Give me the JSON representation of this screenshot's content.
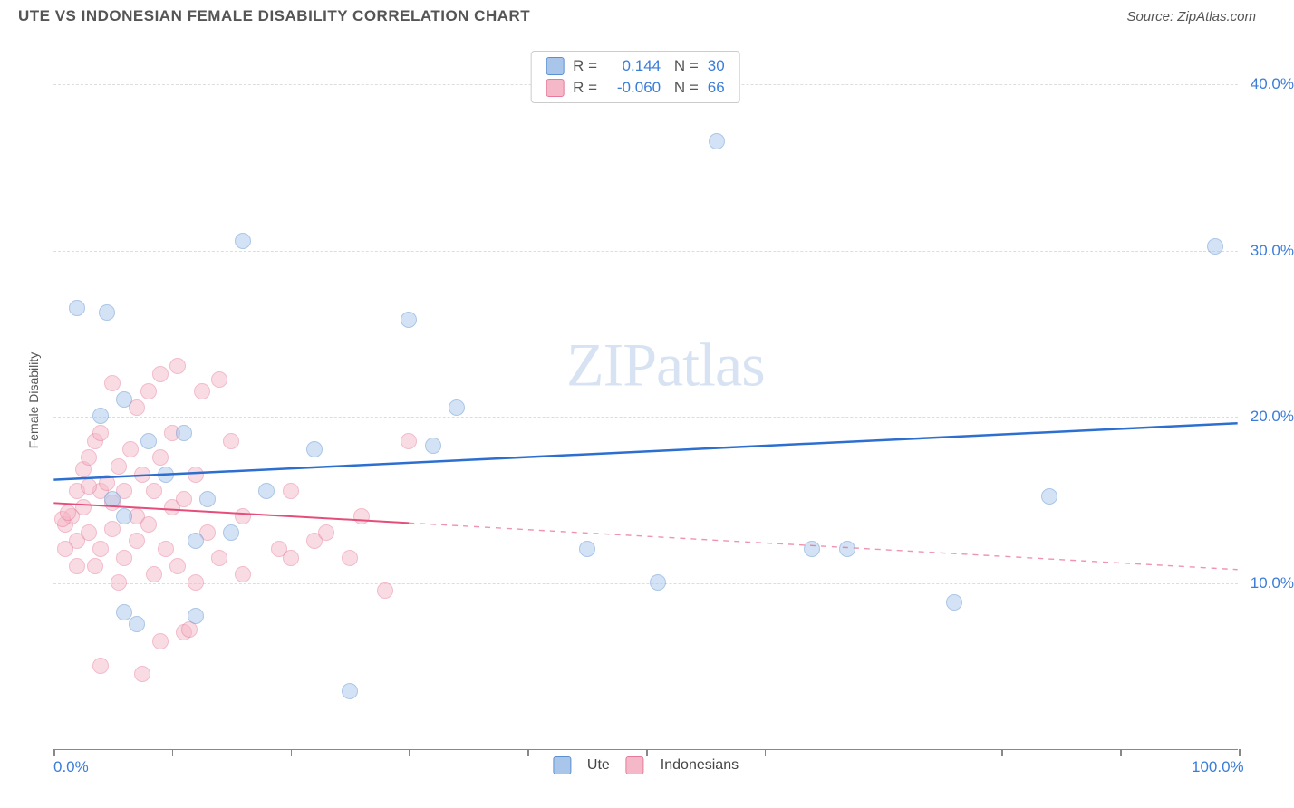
{
  "title": "UTE VS INDONESIAN FEMALE DISABILITY CORRELATION CHART",
  "source": "Source: ZipAtlas.com",
  "watermark_zip": "ZIP",
  "watermark_atlas": "atlas",
  "y_axis_label": "Female Disability",
  "chart": {
    "type": "scatter",
    "background_color": "#ffffff",
    "grid_color": "#dddddd",
    "axis_color": "#888888",
    "xlim": [
      0,
      100
    ],
    "ylim": [
      0,
      42
    ],
    "y_ticks": [
      10,
      20,
      30,
      40
    ],
    "y_tick_labels": [
      "10.0%",
      "20.0%",
      "30.0%",
      "40.0%"
    ],
    "x_ticks": [
      0,
      10,
      20,
      30,
      40,
      50,
      60,
      70,
      80,
      90,
      100
    ],
    "x_tick_labels_shown": {
      "0": "0.0%",
      "100": "100.0%"
    },
    "marker_radius": 9,
    "marker_opacity": 0.5,
    "marker_border_width": 1.5,
    "series": {
      "ute": {
        "label": "Ute",
        "fill": "#a9c6ea",
        "stroke": "#5a8fd0",
        "r_value": "0.144",
        "n_value": "30",
        "trend": {
          "x1": 0,
          "y1": 16.2,
          "x2": 100,
          "y2": 19.6,
          "solid_until_x": 100,
          "color": "#2d6fd0",
          "width": 2.5
        },
        "points": [
          [
            2,
            26.5
          ],
          [
            4.5,
            26.2
          ],
          [
            6,
            21.0
          ],
          [
            6,
            14.0
          ],
          [
            6,
            8.2
          ],
          [
            11,
            19.0
          ],
          [
            12,
            12.5
          ],
          [
            12,
            8.0
          ],
          [
            15,
            13.0
          ],
          [
            16,
            30.5
          ],
          [
            22,
            18.0
          ],
          [
            25,
            3.5
          ],
          [
            30,
            25.8
          ],
          [
            32,
            18.2
          ],
          [
            34,
            20.5
          ],
          [
            45,
            12.0
          ],
          [
            51,
            10.0
          ],
          [
            56,
            36.5
          ],
          [
            64,
            12.0
          ],
          [
            67,
            12.0
          ],
          [
            76,
            8.8
          ],
          [
            84,
            15.2
          ],
          [
            98,
            30.2
          ],
          [
            8,
            18.5
          ],
          [
            4,
            20.0
          ],
          [
            18,
            15.5
          ],
          [
            9.5,
            16.5
          ],
          [
            13,
            15.0
          ],
          [
            7,
            7.5
          ],
          [
            5,
            15.0
          ]
        ]
      },
      "indonesians": {
        "label": "Indonesians",
        "fill": "#f5b8c8",
        "stroke": "#e67a9a",
        "r_value": "-0.060",
        "n_value": "66",
        "trend": {
          "x1": 0,
          "y1": 14.8,
          "x2": 100,
          "y2": 10.8,
          "solid_until_x": 30,
          "color": "#e54d7a",
          "width": 2
        },
        "points": [
          [
            1,
            13.5
          ],
          [
            1.5,
            14.0
          ],
          [
            2,
            12.5
          ],
          [
            2,
            15.5
          ],
          [
            2.5,
            14.5
          ],
          [
            2.5,
            16.8
          ],
          [
            3,
            13.0
          ],
          [
            3,
            17.5
          ],
          [
            3.5,
            18.5
          ],
          [
            3.5,
            11.0
          ],
          [
            4,
            15.5
          ],
          [
            4,
            19.0
          ],
          [
            4,
            12.0
          ],
          [
            4.5,
            16.0
          ],
          [
            5,
            22.0
          ],
          [
            5,
            14.8
          ],
          [
            5,
            13.2
          ],
          [
            5.5,
            17.0
          ],
          [
            5.5,
            10.0
          ],
          [
            6,
            15.5
          ],
          [
            6,
            11.5
          ],
          [
            6.5,
            18.0
          ],
          [
            7,
            20.5
          ],
          [
            7,
            14.0
          ],
          [
            7,
            12.5
          ],
          [
            7.5,
            16.5
          ],
          [
            8,
            21.5
          ],
          [
            8,
            13.5
          ],
          [
            8.5,
            10.5
          ],
          [
            8.5,
            15.5
          ],
          [
            9,
            22.5
          ],
          [
            9,
            17.5
          ],
          [
            9,
            6.5
          ],
          [
            9.5,
            12.0
          ],
          [
            10,
            19.0
          ],
          [
            10,
            14.5
          ],
          [
            10.5,
            11.0
          ],
          [
            10.5,
            23.0
          ],
          [
            11,
            15.0
          ],
          [
            11,
            7.0
          ],
          [
            11.5,
            7.2
          ],
          [
            12,
            16.5
          ],
          [
            12,
            10.0
          ],
          [
            12.5,
            21.5
          ],
          [
            13,
            13.0
          ],
          [
            14,
            22.2
          ],
          [
            14,
            11.5
          ],
          [
            15,
            18.5
          ],
          [
            16,
            10.5
          ],
          [
            16,
            14.0
          ],
          [
            19,
            12.0
          ],
          [
            20,
            15.5
          ],
          [
            20,
            11.5
          ],
          [
            22,
            12.5
          ],
          [
            23,
            13.0
          ],
          [
            25,
            11.5
          ],
          [
            26,
            14.0
          ],
          [
            28,
            9.5
          ],
          [
            30,
            18.5
          ],
          [
            4,
            5.0
          ],
          [
            7.5,
            4.5
          ],
          [
            2,
            11.0
          ],
          [
            1,
            12.0
          ],
          [
            0.8,
            13.8
          ],
          [
            1.2,
            14.2
          ],
          [
            3,
            15.8
          ]
        ]
      }
    }
  }
}
